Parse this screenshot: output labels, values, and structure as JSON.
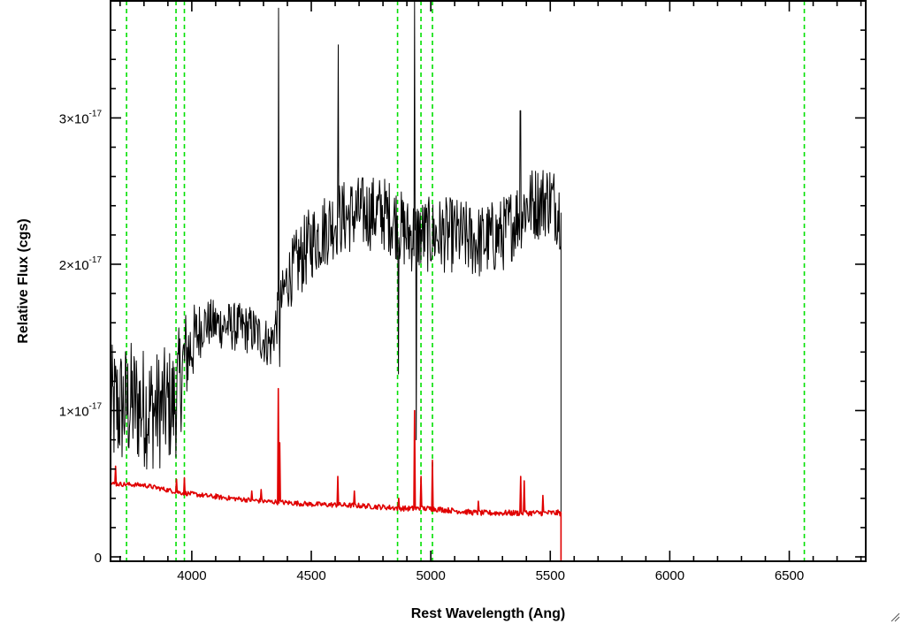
{
  "chart_data": {
    "type": "line",
    "title": "",
    "xlabel": "Rest Wavelength (Ang)",
    "ylabel": "Relative Flux (cgs)",
    "xlim": [
      3660,
      6820
    ],
    "ylim": [
      -0.03,
      3.8
    ],
    "y_unit_multiplier": "1e-17",
    "x_ticks": [
      {
        "value": 4000,
        "label": "4000"
      },
      {
        "value": 4500,
        "label": "4500"
      },
      {
        "value": 5000,
        "label": "5000"
      },
      {
        "value": 5500,
        "label": "5500"
      },
      {
        "value": 6000,
        "label": "6000"
      },
      {
        "value": 6500,
        "label": "6500"
      }
    ],
    "y_ticks": [
      {
        "value": 0,
        "mantissa": "0",
        "exp": ""
      },
      {
        "value": 1,
        "mantissa": "1×10",
        "exp": "-17"
      },
      {
        "value": 2,
        "mantissa": "2×10",
        "exp": "-17"
      },
      {
        "value": 3,
        "mantissa": "3×10",
        "exp": "-17"
      }
    ],
    "x_minor_step": 100,
    "y_minor_step": 0.2,
    "grid": false,
    "reference_lines": {
      "color": "#00e000",
      "style": "dashed",
      "x": [
        3727,
        3934,
        3969,
        4861,
        4959,
        5007,
        6563
      ]
    },
    "series": [
      {
        "color": "#000000",
        "continuum": [
          [
            3660,
            1.0
          ],
          [
            3750,
            1.05
          ],
          [
            3850,
            1.0
          ],
          [
            3930,
            1.05
          ],
          [
            3970,
            1.35
          ],
          [
            4050,
            1.6
          ],
          [
            4150,
            1.58
          ],
          [
            4250,
            1.55
          ],
          [
            4330,
            1.45
          ],
          [
            4400,
            1.9
          ],
          [
            4500,
            2.15
          ],
          [
            4600,
            2.3
          ],
          [
            4700,
            2.35
          ],
          [
            4800,
            2.35
          ],
          [
            4850,
            2.3
          ],
          [
            4900,
            2.2
          ],
          [
            5000,
            2.2
          ],
          [
            5100,
            2.2
          ],
          [
            5200,
            2.15
          ],
          [
            5300,
            2.2
          ],
          [
            5400,
            2.4
          ],
          [
            5500,
            2.45
          ],
          [
            5545,
            2.35
          ]
        ],
        "noise_amplitude": [
          [
            3660,
            0.45
          ],
          [
            3950,
            0.4
          ],
          [
            4050,
            0.17
          ],
          [
            4350,
            0.17
          ],
          [
            4450,
            0.26
          ],
          [
            5545,
            0.26
          ]
        ],
        "spikes": [
          [
            4363,
            3.75
          ],
          [
            4368,
            1.3
          ],
          [
            4612,
            3.5
          ],
          [
            4865,
            1.25
          ],
          [
            4932,
            3.8
          ],
          [
            4940,
            0.8
          ],
          [
            5375,
            3.05
          ]
        ],
        "end_x": 5545,
        "drop_to": 0.3
      },
      {
        "color": "#e00000",
        "continuum": [
          [
            3660,
            0.5
          ],
          [
            3800,
            0.49
          ],
          [
            3950,
            0.44
          ],
          [
            4100,
            0.41
          ],
          [
            4300,
            0.38
          ],
          [
            4500,
            0.36
          ],
          [
            4700,
            0.35
          ],
          [
            4900,
            0.33
          ],
          [
            5000,
            0.33
          ],
          [
            5200,
            0.3
          ],
          [
            5400,
            0.3
          ],
          [
            5545,
            0.3
          ]
        ],
        "noise_amplitude": [
          [
            3660,
            0.015
          ],
          [
            5545,
            0.02
          ]
        ],
        "spikes": [
          [
            3682,
            0.62
          ],
          [
            3935,
            0.53
          ],
          [
            3970,
            0.54
          ],
          [
            4102,
            0.43
          ],
          [
            4250,
            0.45
          ],
          [
            4290,
            0.46
          ],
          [
            4363,
            1.15
          ],
          [
            4368,
            0.78
          ],
          [
            4612,
            0.55
          ],
          [
            4680,
            0.45
          ],
          [
            4865,
            0.4
          ],
          [
            4932,
            1.0
          ],
          [
            4960,
            0.55
          ],
          [
            5007,
            0.66
          ],
          [
            5200,
            0.38
          ],
          [
            5375,
            0.55
          ],
          [
            5390,
            0.52
          ],
          [
            5470,
            0.42
          ]
        ],
        "end_x": 5545,
        "after_x": [
          5545,
          6820
        ],
        "after_value": -0.03
      }
    ]
  }
}
